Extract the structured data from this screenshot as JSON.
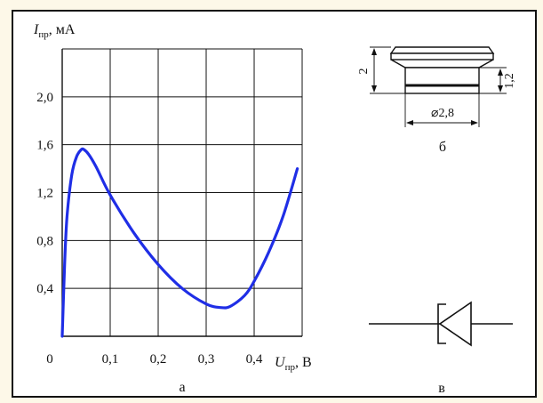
{
  "panels": {
    "a": {
      "caption": "а"
    },
    "b": {
      "caption": "б"
    },
    "v": {
      "caption": "в"
    }
  },
  "chart_data": {
    "type": "line",
    "xlabel": {
      "symbol": "U",
      "subscript": "пр",
      "unit": ", В"
    },
    "ylabel": {
      "symbol": "I",
      "subscript": "пр",
      "unit": ", мА"
    },
    "xlim": [
      0,
      0.5
    ],
    "ylim": [
      0,
      2.4
    ],
    "x_ticks": [
      {
        "value": 0,
        "label": "0"
      },
      {
        "value": 0.1,
        "label": "0,1"
      },
      {
        "value": 0.2,
        "label": "0,2"
      },
      {
        "value": 0.3,
        "label": "0,3"
      },
      {
        "value": 0.4,
        "label": "0,4"
      }
    ],
    "y_ticks": [
      {
        "value": 0.4,
        "label": "0,4"
      },
      {
        "value": 0.8,
        "label": "0,8"
      },
      {
        "value": 1.2,
        "label": "1,2"
      },
      {
        "value": 1.6,
        "label": "1,6"
      },
      {
        "value": 2.0,
        "label": "2,0"
      }
    ],
    "grid": true,
    "series": [
      {
        "color": "#1f2ee6",
        "x": [
          0.0,
          0.005,
          0.01,
          0.02,
          0.03,
          0.04,
          0.045,
          0.055,
          0.07,
          0.1,
          0.15,
          0.2,
          0.25,
          0.3,
          0.33,
          0.35,
          0.38,
          0.4,
          0.43,
          0.46,
          0.49
        ],
        "y": [
          0.0,
          0.6,
          1.0,
          1.35,
          1.5,
          1.56,
          1.56,
          1.52,
          1.42,
          1.18,
          0.86,
          0.6,
          0.4,
          0.27,
          0.24,
          0.25,
          0.34,
          0.46,
          0.7,
          1.0,
          1.4
        ]
      }
    ]
  },
  "package_drawing": {
    "height_label": "2",
    "body_height_label": "1,2",
    "diameter_label": "⌀2,8"
  }
}
